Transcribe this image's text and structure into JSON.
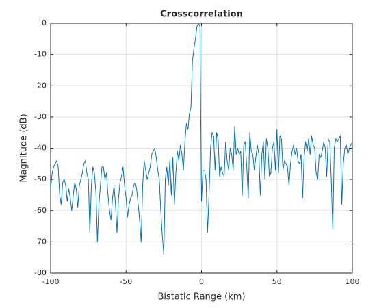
{
  "chart_data": {
    "type": "line",
    "title": "Crosscorrelation",
    "x_label": "Bistatic Range (km)",
    "y_label": "Magnitude (dB)",
    "x": [
      -100,
      -99,
      -98,
      -97,
      -96,
      -95,
      -94,
      -93,
      -92,
      -91,
      -90,
      -89,
      -88,
      -87,
      -86,
      -85,
      -84,
      -83,
      -82,
      -81,
      -80,
      -79,
      -78,
      -77,
      -76,
      -75,
      -74,
      -73,
      -72,
      -71,
      -70,
      -69,
      -68,
      -67,
      -66,
      -65,
      -64,
      -63,
      -62,
      -61,
      -60,
      -59,
      -58,
      -57,
      -56,
      -55,
      -54,
      -53,
      -52,
      -51,
      -50,
      -49,
      -48,
      -47,
      -46,
      -45,
      -44,
      -43,
      -42,
      -41,
      -40,
      -39,
      -38,
      -37,
      -36,
      -35,
      -34,
      -33,
      -32,
      -31,
      -30,
      -29,
      -28,
      -27,
      -26,
      -25,
      -24,
      -23,
      -22,
      -21,
      -20,
      -19,
      -18,
      -17,
      -16,
      -15,
      -14,
      -13,
      -12,
      -11,
      -10,
      -9,
      -8,
      -7,
      -6,
      -5,
      -4,
      -3,
      -2,
      -1,
      0,
      1,
      2,
      3,
      4,
      5,
      6,
      7,
      8,
      9,
      10,
      11,
      12,
      13,
      14,
      15,
      16,
      17,
      18,
      19,
      20,
      21,
      22,
      23,
      24,
      25,
      26,
      27,
      28,
      29,
      30,
      31,
      32,
      33,
      34,
      35,
      36,
      37,
      38,
      39,
      40,
      41,
      42,
      43,
      44,
      45,
      46,
      47,
      48,
      49,
      50,
      51,
      52,
      53,
      54,
      55,
      56,
      57,
      58,
      59,
      60,
      61,
      62,
      63,
      64,
      65,
      66,
      67,
      68,
      69,
      70,
      71,
      72,
      73,
      74,
      75,
      76,
      77,
      78,
      79,
      80,
      81,
      82,
      83,
      84,
      85,
      86,
      87,
      88,
      89,
      90,
      91,
      92,
      93,
      94,
      95,
      96,
      97,
      98,
      99,
      100
    ],
    "series": [
      {
        "name": "Crosscorrelation",
        "color": "#0072bd",
        "values": [
          -53,
          -48,
          -46,
          -45,
          -44,
          -46,
          -55,
          -58,
          -51,
          -50,
          -52,
          -57,
          -53,
          -56,
          -60,
          -55,
          -51,
          -53,
          -59,
          -52,
          -50,
          -48,
          -45,
          -44,
          -48,
          -50,
          -67,
          -52,
          -46,
          -48,
          -54,
          -70,
          -58,
          -52,
          -46,
          -46,
          -50,
          -48,
          -55,
          -60,
          -63,
          -56,
          -52,
          -58,
          -67,
          -56,
          -51,
          -49,
          -46,
          -52,
          -56,
          -62,
          -58,
          -56,
          -55,
          -52,
          -51,
          -53,
          -58,
          -63,
          -70,
          -52,
          -44,
          -47,
          -50,
          -48,
          -46,
          -42,
          -41,
          -40,
          -43,
          -47,
          -50,
          -60,
          -68,
          -74,
          -50,
          -46,
          -52,
          -44,
          -55,
          -43,
          -58,
          -48,
          -41,
          -44,
          -39,
          -42,
          -47,
          -38,
          -32,
          -34,
          -29,
          -27,
          -12,
          -8,
          -5,
          -1,
          0,
          -1,
          -57,
          -47,
          -47,
          -50,
          -67,
          -55,
          -40,
          -35,
          -36,
          -47,
          -35,
          -37,
          -49,
          -46,
          -48,
          -49,
          -38,
          -44,
          -47,
          -40,
          -42,
          -47,
          -33,
          -42,
          -40,
          -42,
          -41,
          -55,
          -39,
          -38,
          -46,
          -56,
          -35,
          -41,
          -42,
          -47,
          -43,
          -39,
          -42,
          -55,
          -42,
          -38,
          -50,
          -37,
          -40,
          -49,
          -48,
          -40,
          -38,
          -47,
          -34,
          -48,
          -36,
          -37,
          -47,
          -44,
          -45,
          -46,
          -52,
          -45,
          -41,
          -39,
          -42,
          -40,
          -44,
          -45,
          -42,
          -56,
          -43,
          -38,
          -41,
          -37,
          -42,
          -36,
          -39,
          -40,
          -48,
          -50,
          -42,
          -43,
          -41,
          -38,
          -40,
          -49,
          -37,
          -38,
          -50,
          -66,
          -40,
          -37,
          -38,
          -37,
          -36,
          -58,
          -45,
          -40,
          -39,
          -42,
          -40,
          -39,
          -38
        ]
      }
    ],
    "xlim": [
      -100,
      100
    ],
    "ylim": [
      -80,
      0
    ],
    "xticks": [
      -100,
      -50,
      0,
      50,
      100
    ],
    "yticks": [
      -80,
      -70,
      -60,
      -50,
      -40,
      -30,
      -20,
      -10,
      0
    ],
    "grid": true
  }
}
